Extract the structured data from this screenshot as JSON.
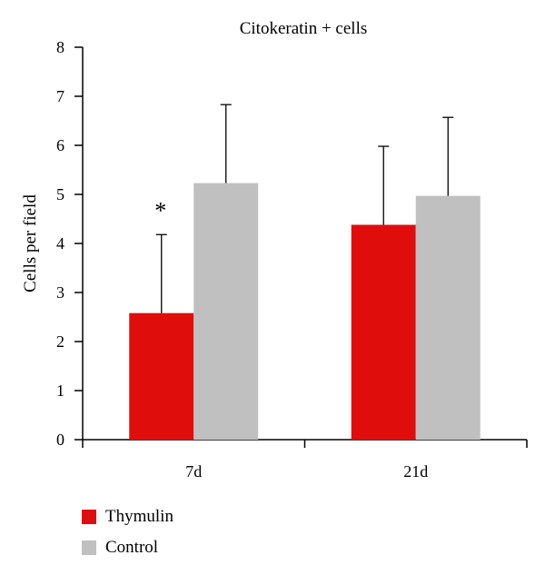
{
  "chart_data": {
    "type": "bar",
    "title": "Citokeratin + cells",
    "xlabel": "",
    "ylabel": "Cells per field",
    "ylim": [
      0,
      8
    ],
    "yticks": [
      "0",
      "1",
      "2",
      "3",
      "4",
      "5",
      "6",
      "7",
      "8"
    ],
    "categories": [
      "7d",
      "21d"
    ],
    "series": [
      {
        "name": "Thymulin",
        "color": "#e00d0d",
        "values": [
          2.58,
          4.38
        ],
        "errors": [
          1.6,
          1.6
        ]
      },
      {
        "name": "Control",
        "color": "#c0c0c0",
        "values": [
          5.23,
          4.97
        ],
        "errors": [
          1.6,
          1.6
        ]
      }
    ],
    "annotations": [
      {
        "text": "*",
        "category_index": 0,
        "series_index": 0
      }
    ],
    "grid": false,
    "legend_position": "bottom-left"
  }
}
